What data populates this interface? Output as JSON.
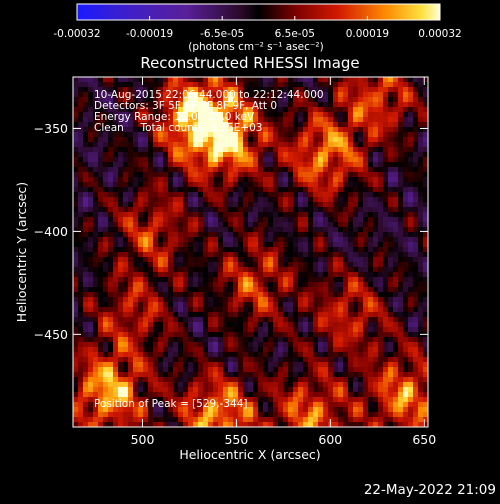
{
  "chart_data": {
    "type": "heatmap",
    "title": "Reconstructed RHESSI Image",
    "xlabel": "Heliocentric X (arcsec)",
    "ylabel": "Heliocentric Y (arcsec)",
    "xlim": [
      463,
      652
    ],
    "ylim": [
      -495,
      -325
    ],
    "x_ticks": [
      500,
      550,
      600,
      650
    ],
    "y_ticks": [
      -350,
      -400,
      -450
    ],
    "colorbar": {
      "ticks": [
        "-0.00032",
        "-0.00019",
        "-6.5e-05",
        "6.5e-05",
        "0.00019",
        "0.00032"
      ],
      "unit_label": "(photons cm⁻² s⁻¹ asec⁻²)",
      "range": [
        -0.00032,
        0.00032
      ]
    },
    "annotations": [
      "10-Aug-2015 22:06:44.000 to 22:12:44.000",
      "Detectors: 3F 5F 6F 7F 8F 9F, Att 0",
      "Energy Range: 12.0 - 25.0 keV",
      "Clean     Total counts: 9.35E+03"
    ],
    "peak_label": "Position of Peak = [529,-344]",
    "peak": [
      529,
      -344
    ],
    "sources": [
      {
        "x": 529,
        "y": -344,
        "amp": 1.0
      },
      {
        "x": 545,
        "y": -355,
        "amp": 0.85
      },
      {
        "x": 597,
        "y": -363,
        "amp": 0.75
      },
      {
        "x": 625,
        "y": -335,
        "amp": 0.6
      },
      {
        "x": 482,
        "y": -478,
        "amp": 0.9
      },
      {
        "x": 540,
        "y": -490,
        "amp": 0.85
      },
      {
        "x": 590,
        "y": -490,
        "amp": 0.7
      },
      {
        "x": 640,
        "y": -480,
        "amp": 0.75
      },
      {
        "x": 505,
        "y": -400,
        "amp": 0.5
      },
      {
        "x": 560,
        "y": -425,
        "amp": 0.55
      },
      {
        "x": 610,
        "y": -440,
        "amp": 0.5
      },
      {
        "x": 495,
        "y": -440,
        "amp": 0.45
      }
    ],
    "timestamp": "22-May-2022 21:09"
  }
}
